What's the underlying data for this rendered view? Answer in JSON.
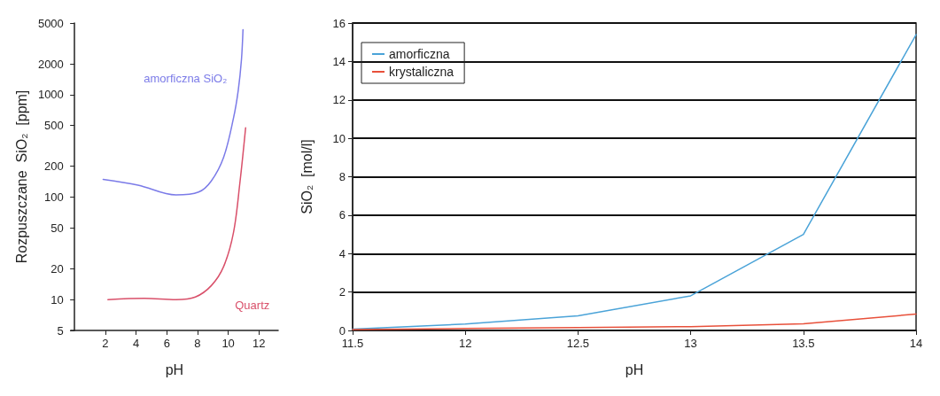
{
  "chart_data": [
    {
      "type": "line",
      "xlabel": "pH",
      "ylabel": "Rozpuszczane  SiO₂  [ppm]",
      "log": "y",
      "xlim": [
        -0.25,
        13.25
      ],
      "xticks": [
        2,
        4,
        6,
        8,
        10,
        12
      ],
      "ylim": [
        5,
        5000
      ],
      "yticks": [
        5,
        10,
        20,
        50,
        100,
        200,
        500,
        1000,
        2000,
        5000
      ],
      "grid": false,
      "legend": false,
      "marker": "none",
      "series": [
        {
          "name": "amorficzna SiO₂",
          "color": "#7b7be8",
          "x": [
            1.86,
            4.13,
            6.6,
            8.07,
            8.9,
            9.7,
            10.34,
            10.65,
            10.86,
            10.96
          ],
          "values": [
            149,
            131,
            105,
            112,
            144,
            245,
            590,
            1100,
            2200,
            4300
          ]
        },
        {
          "name": "Quartz",
          "color": "#d9506a",
          "x": [
            2.17,
            4.55,
            6.6,
            7.86,
            8.9,
            9.7,
            10.34,
            10.76,
            11.13
          ],
          "values": [
            10,
            10.3,
            10,
            10.6,
            13.7,
            21,
            45,
            139,
            474
          ]
        }
      ]
    },
    {
      "type": "line",
      "xlabel": "pH",
      "ylabel": "SiO₂  [mol/l]",
      "xlim": [
        11.5,
        14
      ],
      "xticks": [
        11.5,
        12,
        12.5,
        13,
        13.5,
        14
      ],
      "ylim": [
        0,
        16
      ],
      "yticks": [
        0,
        2,
        4,
        6,
        8,
        10,
        12,
        14,
        16
      ],
      "grid": "y",
      "legend": "top left",
      "marker": "none",
      "x": [
        11.5,
        12,
        12.5,
        13,
        13.5,
        14
      ],
      "series": [
        {
          "name": "amorficzna",
          "color": "#4aa3d8",
          "values": [
            0.07,
            0.33,
            0.76,
            1.8,
            5.0,
            15.4
          ]
        },
        {
          "name": "krystaliczna",
          "color": "#e8503a",
          "values": [
            0.05,
            0.1,
            0.15,
            0.2,
            0.35,
            0.85
          ]
        }
      ]
    }
  ]
}
